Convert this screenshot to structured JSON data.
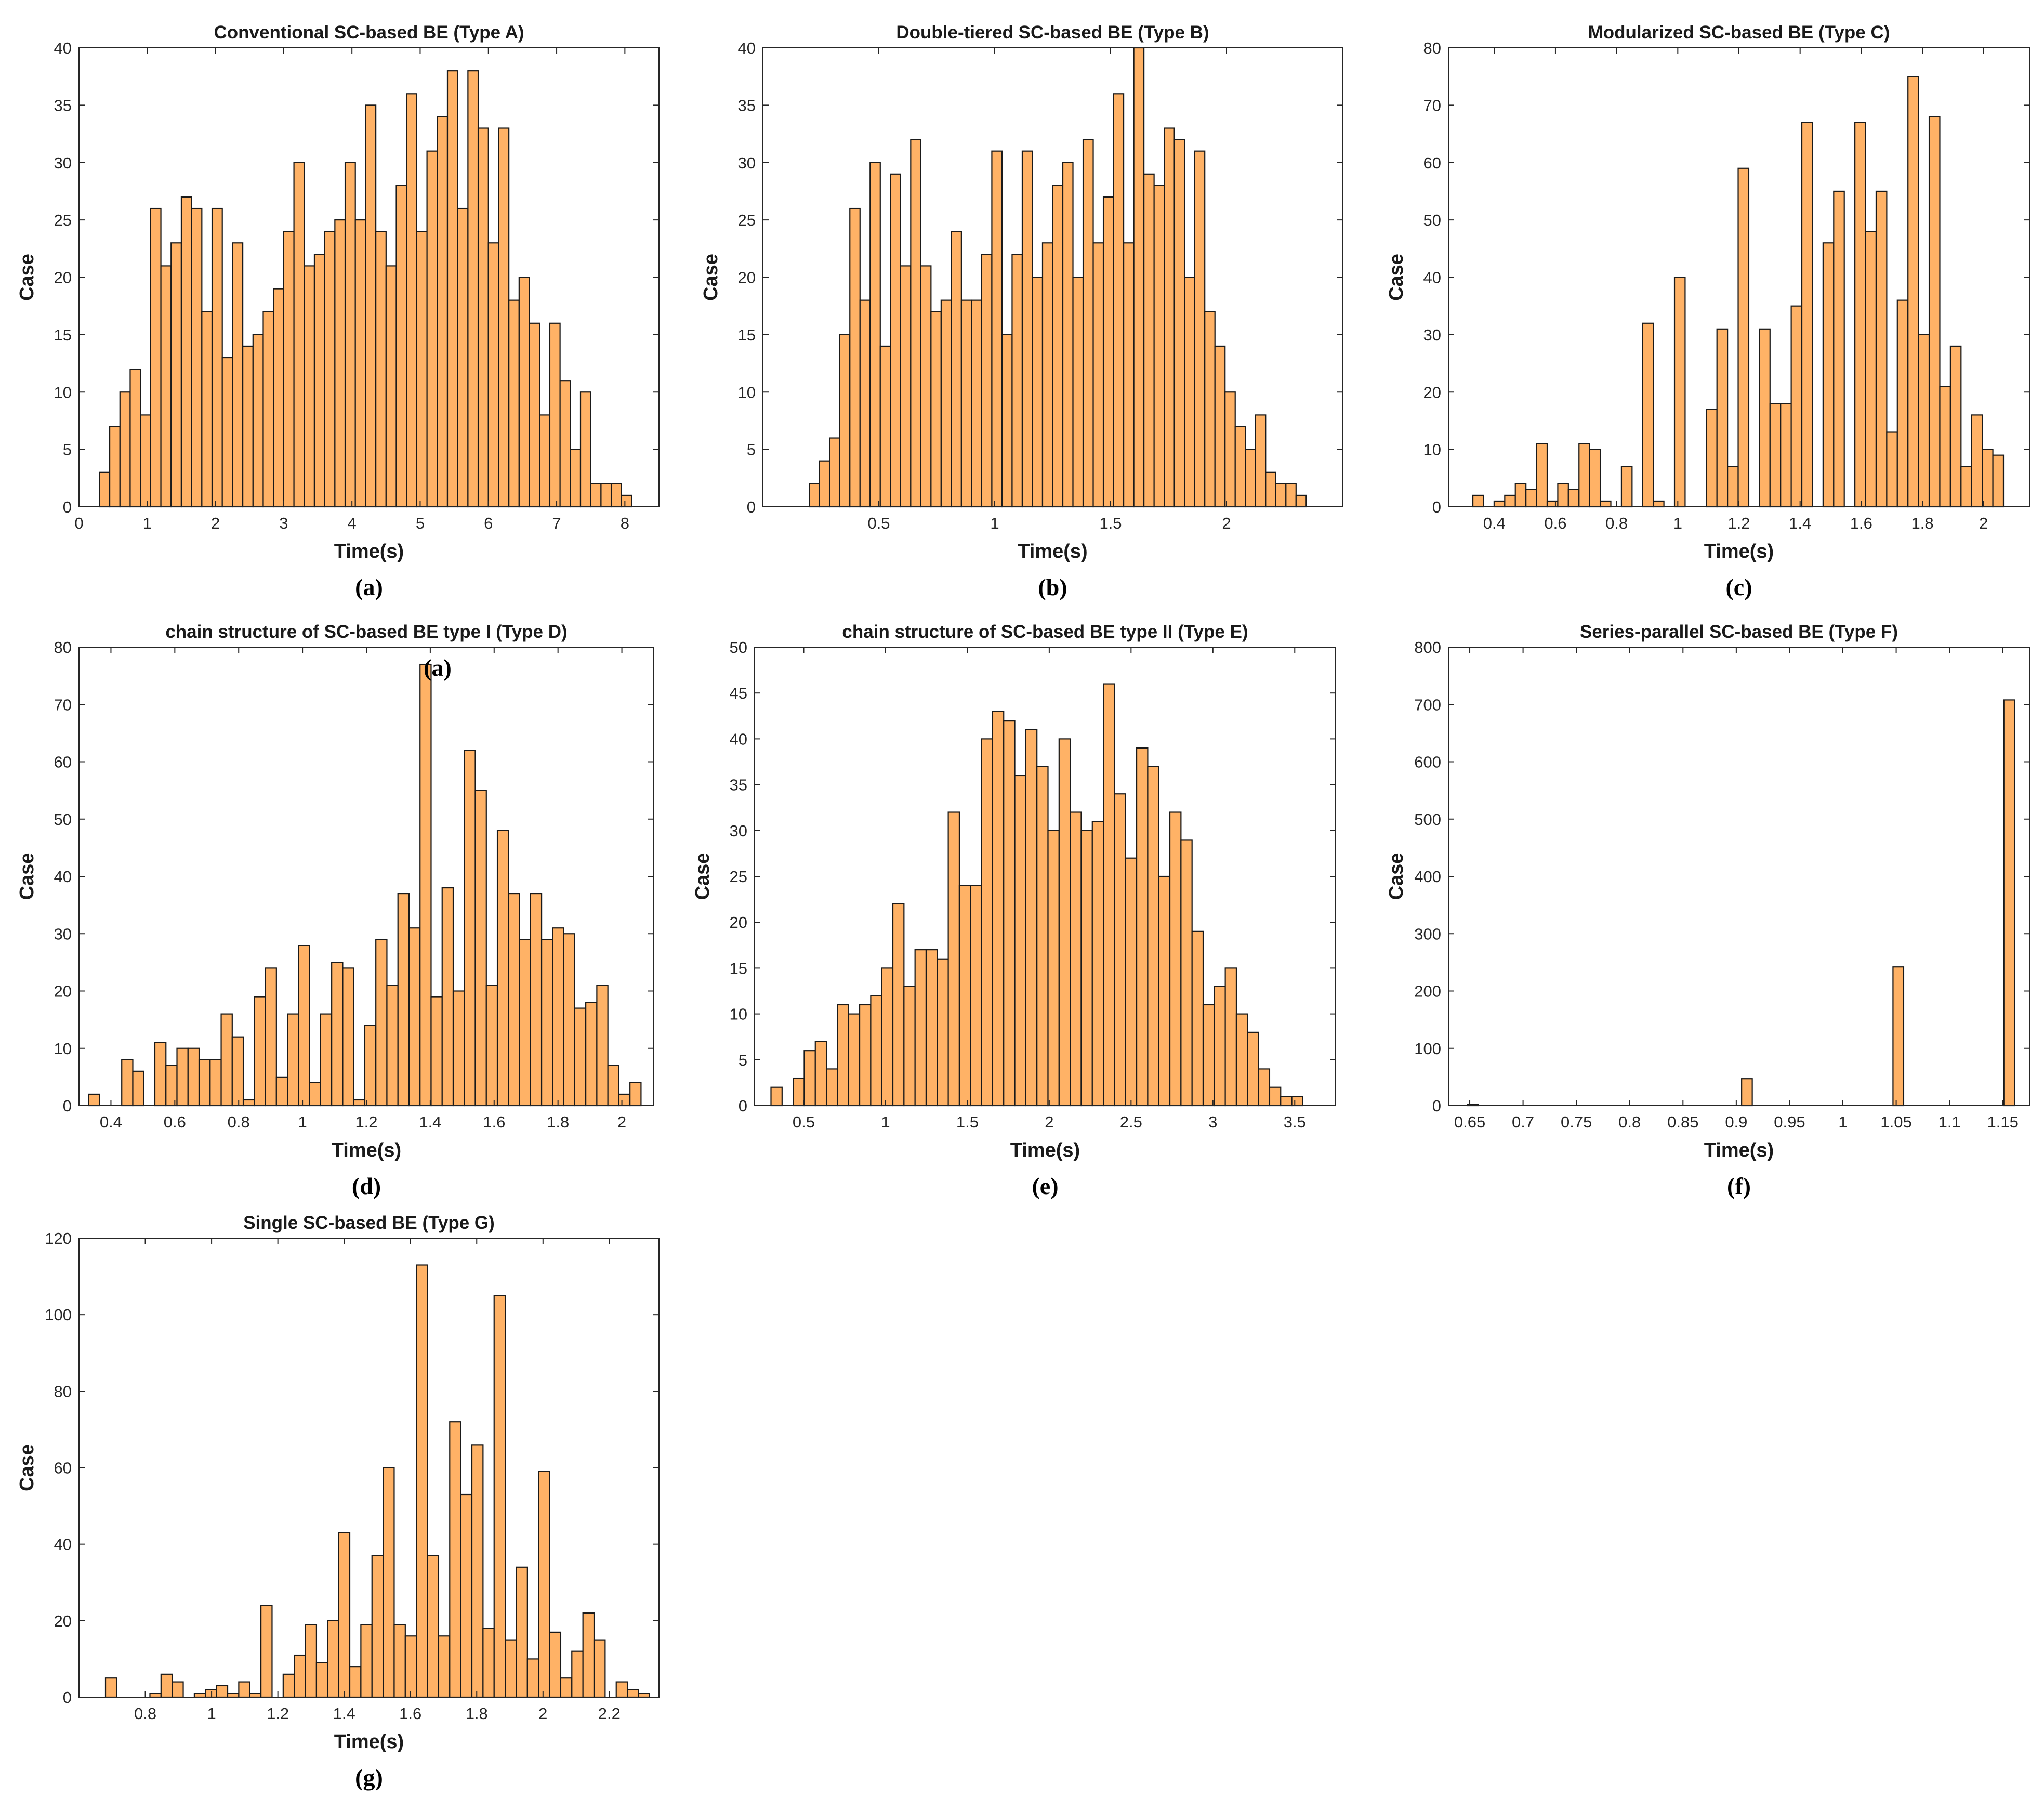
{
  "figure": {
    "stray_label": "(a)"
  },
  "chart_data": [
    {
      "type": "bar",
      "panel_label": "(a)",
      "title": "Conventional SC-based BE (Type A)",
      "xlabel": "Time(s)",
      "ylabel": "Case",
      "xlim": [
        0,
        8.5
      ],
      "ylim": [
        0,
        40
      ],
      "xticks": [
        0,
        1,
        2,
        3,
        4,
        5,
        6,
        7,
        8
      ],
      "xtick_labels": [
        "0",
        "1",
        "2",
        "3",
        "4",
        "5",
        "6",
        "7",
        "8"
      ],
      "yticks": [
        0,
        5,
        10,
        15,
        20,
        25,
        30,
        35,
        40
      ],
      "ytick_labels": [
        "0",
        "5",
        "10",
        "15",
        "20",
        "25",
        "30",
        "35",
        "40"
      ],
      "bin_start": 0.3,
      "bin_width": 0.15,
      "values": [
        3,
        7,
        10,
        12,
        8,
        26,
        21,
        23,
        27,
        26,
        17,
        26,
        13,
        23,
        14,
        15,
        17,
        19,
        24,
        30,
        21,
        22,
        24,
        25,
        30,
        25,
        35,
        24,
        21,
        28,
        36,
        24,
        31,
        34,
        38,
        26,
        38,
        33,
        23,
        33,
        18,
        20,
        16,
        8,
        16,
        11,
        5,
        10,
        2,
        2,
        2,
        1
      ]
    },
    {
      "type": "bar",
      "panel_label": "(b)",
      "title": "Double-tiered SC-based BE (Type B)",
      "xlabel": "Time(s)",
      "ylabel": "Case",
      "xlim": [
        0,
        2.5
      ],
      "ylim": [
        0,
        40
      ],
      "xticks": [
        0.5,
        1,
        1.5,
        2
      ],
      "xtick_labels": [
        "0.5",
        "1",
        "1.5",
        "2"
      ],
      "yticks": [
        0,
        5,
        10,
        15,
        20,
        25,
        30,
        35,
        40
      ],
      "ytick_labels": [
        "0",
        "5",
        "10",
        "15",
        "20",
        "25",
        "30",
        "35",
        "40"
      ],
      "bin_start": 0.2,
      "bin_width": 0.04375,
      "values": [
        2,
        4,
        6,
        15,
        26,
        18,
        30,
        14,
        29,
        21,
        32,
        21,
        17,
        18,
        24,
        18,
        18,
        22,
        31,
        15,
        22,
        31,
        20,
        23,
        28,
        30,
        20,
        32,
        23,
        27,
        36,
        23,
        40,
        29,
        28,
        33,
        32,
        20,
        31,
        17,
        14,
        10,
        7,
        5,
        8,
        3,
        2,
        2,
        1
      ]
    },
    {
      "type": "bar",
      "panel_label": "(c)",
      "title": "Modularized SC-based BE (Type C)",
      "xlabel": "Time(s)",
      "ylabel": "Case",
      "xlim": [
        0.25,
        2.15
      ],
      "ylim": [
        0,
        80
      ],
      "xticks": [
        0.4,
        0.6,
        0.8,
        1,
        1.2,
        1.4,
        1.6,
        1.8,
        2
      ],
      "xtick_labels": [
        "0.4",
        "0.6",
        "0.8",
        "1",
        "1.2",
        "1.4",
        "1.6",
        "1.8",
        "2"
      ],
      "yticks": [
        0,
        10,
        20,
        30,
        40,
        50,
        60,
        70,
        80
      ],
      "ytick_labels": [
        "0",
        "10",
        "20",
        "30",
        "40",
        "50",
        "60",
        "70",
        "80"
      ],
      "bin_start": 0.33,
      "bin_width": 0.0347,
      "values": [
        2,
        0,
        1,
        2,
        4,
        3,
        11,
        1,
        4,
        3,
        11,
        10,
        1,
        0,
        7,
        0,
        32,
        1,
        0,
        40,
        0,
        0,
        17,
        31,
        7,
        59,
        0,
        31,
        18,
        18,
        35,
        67,
        0,
        46,
        55,
        0,
        67,
        48,
        55,
        13,
        36,
        75,
        30,
        68,
        21,
        28,
        7,
        16,
        10,
        9,
        0
      ]
    },
    {
      "type": "bar",
      "panel_label": "(d)",
      "title": "chain structure of SC-based BE type I (Type D)",
      "xlabel": "Time(s)",
      "ylabel": "Case",
      "xlim": [
        0.3,
        2.1
      ],
      "ylim": [
        0,
        80
      ],
      "xticks": [
        0.4,
        0.6,
        0.8,
        1,
        1.2,
        1.4,
        1.6,
        1.8,
        2
      ],
      "xtick_labels": [
        "0.4",
        "0.6",
        "0.8",
        "1",
        "1.2",
        "1.4",
        "1.6",
        "1.8",
        "2"
      ],
      "yticks": [
        0,
        10,
        20,
        30,
        40,
        50,
        60,
        70,
        80
      ],
      "ytick_labels": [
        "0",
        "10",
        "20",
        "30",
        "40",
        "50",
        "60",
        "70",
        "80"
      ],
      "bin_start": 0.33,
      "bin_width": 0.0346,
      "values": [
        2,
        0,
        0,
        8,
        6,
        0,
        11,
        7,
        10,
        10,
        8,
        8,
        16,
        12,
        1,
        19,
        24,
        5,
        16,
        28,
        4,
        16,
        25,
        24,
        1,
        14,
        29,
        21,
        37,
        31,
        77,
        19,
        38,
        20,
        62,
        55,
        21,
        48,
        37,
        29,
        37,
        29,
        31,
        30,
        17,
        18,
        21,
        7,
        2,
        4
      ]
    },
    {
      "type": "bar",
      "panel_label": "(e)",
      "title": "chain structure of SC-based BE type II (Type E)",
      "xlabel": "Time(s)",
      "ylabel": "Case",
      "xlim": [
        0.2,
        3.75
      ],
      "ylim": [
        0,
        50
      ],
      "xticks": [
        0.5,
        1,
        1.5,
        2,
        2.5,
        3,
        3.5
      ],
      "xtick_labels": [
        "0.5",
        "1",
        "1.5",
        "2",
        "2.5",
        "3",
        "3.5"
      ],
      "yticks": [
        0,
        5,
        10,
        15,
        20,
        25,
        30,
        35,
        40,
        45,
        50
      ],
      "ytick_labels": [
        "0",
        "5",
        "10",
        "15",
        "20",
        "25",
        "30",
        "35",
        "40",
        "45",
        "50"
      ],
      "bin_start": 0.3,
      "bin_width": 0.0677,
      "values": [
        2,
        0,
        3,
        6,
        7,
        4,
        11,
        10,
        11,
        12,
        15,
        22,
        13,
        17,
        17,
        16,
        32,
        24,
        24,
        40,
        43,
        42,
        36,
        41,
        37,
        30,
        40,
        32,
        30,
        31,
        46,
        34,
        27,
        39,
        37,
        25,
        32,
        29,
        19,
        11,
        13,
        15,
        10,
        8,
        4,
        2,
        1,
        1
      ]
    },
    {
      "type": "bar",
      "panel_label": "(f)",
      "title": "Series-parallel SC-based BE (Type F)",
      "xlabel": "Time(s)",
      "ylabel": "Case",
      "xlim": [
        0.63,
        1.175
      ],
      "ylim": [
        0,
        800
      ],
      "xticks": [
        0.65,
        0.7,
        0.75,
        0.8,
        0.85,
        0.9,
        0.95,
        1,
        1.05,
        1.1,
        1.15
      ],
      "xtick_labels": [
        "0.65",
        "0.7",
        "0.75",
        "0.8",
        "0.85",
        "0.9",
        "0.95",
        "1",
        "1.05",
        "1.1",
        "1.15"
      ],
      "yticks": [
        0,
        100,
        200,
        300,
        400,
        500,
        600,
        700,
        800
      ],
      "ytick_labels": [
        "0",
        "100",
        "200",
        "300",
        "400",
        "500",
        "600",
        "700",
        "800"
      ],
      "bars": [
        {
          "x0": 0.648,
          "x1": 0.658,
          "value": 2
        },
        {
          "x0": 0.905,
          "x1": 0.915,
          "value": 47
        },
        {
          "x0": 1.047,
          "x1": 1.057,
          "value": 242
        },
        {
          "x0": 1.151,
          "x1": 1.161,
          "value": 708
        }
      ]
    },
    {
      "type": "bar",
      "panel_label": "(g)",
      "title": "Single SC-based BE (Type G)",
      "xlabel": "Time(s)",
      "ylabel": "Case",
      "xlim": [
        0.6,
        2.35
      ],
      "ylim": [
        0,
        120
      ],
      "xticks": [
        0.8,
        1,
        1.2,
        1.4,
        1.6,
        1.8,
        2,
        2.2
      ],
      "xtick_labels": [
        "0.8",
        "1",
        "1.2",
        "1.4",
        "1.6",
        "1.8",
        "2",
        "2.2"
      ],
      "yticks": [
        0,
        20,
        40,
        60,
        80,
        100,
        120
      ],
      "ytick_labels": [
        "0",
        "20",
        "40",
        "60",
        "80",
        "100",
        "120"
      ],
      "bin_start": 0.68,
      "bin_width": 0.0335,
      "values": [
        5,
        0,
        0,
        0,
        1,
        6,
        4,
        0,
        1,
        2,
        3,
        1,
        4,
        1,
        24,
        0,
        6,
        11,
        19,
        9,
        20,
        43,
        8,
        19,
        37,
        60,
        19,
        16,
        113,
        37,
        16,
        72,
        53,
        66,
        18,
        105,
        15,
        34,
        10,
        59,
        17,
        5,
        12,
        22,
        15,
        0,
        4,
        2,
        1
      ]
    }
  ]
}
